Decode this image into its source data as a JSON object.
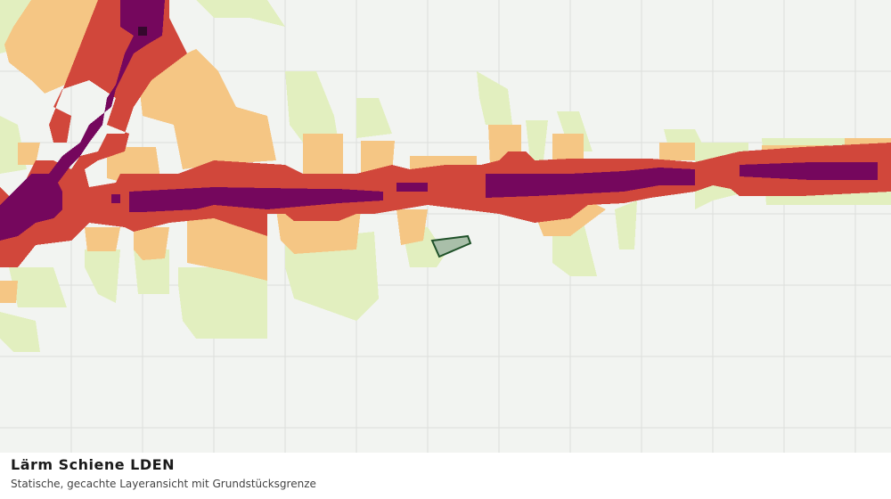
{
  "caption": {
    "title": "Lärm Schiene LDEN",
    "subtitle": "Statische, gecachte Layeransicht mit Grundstücksgrenze"
  }
}
